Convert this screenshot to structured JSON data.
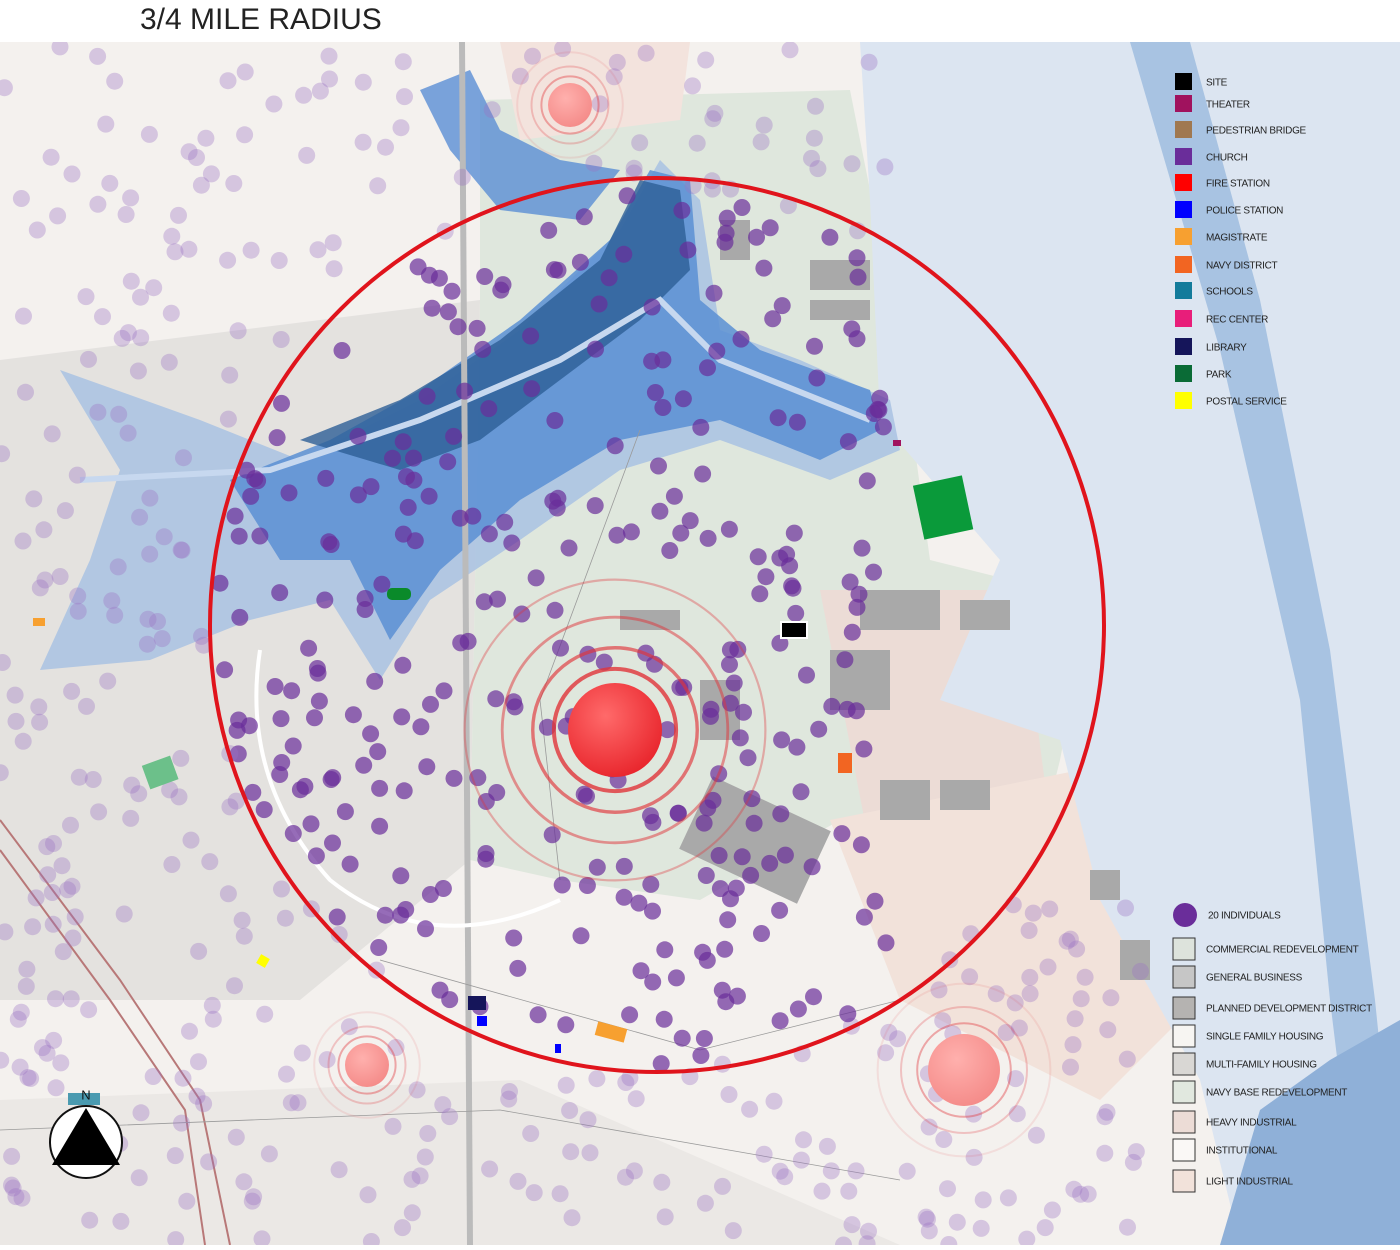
{
  "title": "3/4 MILE RADIUS",
  "legend": {
    "facilities": [
      {
        "label": "SITE",
        "color": "#000000"
      },
      {
        "label": "THEATER",
        "color": "#a0125e"
      },
      {
        "label": "PEDESTRIAN BRIDGE",
        "color": "#a07850"
      },
      {
        "label": "CHURCH",
        "color": "#6a2d9a"
      },
      {
        "label": "FIRE STATION",
        "color": "#ff0000"
      },
      {
        "label": "POLICE STATION",
        "color": "#0000ff"
      },
      {
        "label": "MAGISTRATE",
        "color": "#f7a030"
      },
      {
        "label": "NAVY DISTRICT",
        "color": "#f26522"
      },
      {
        "label": "SCHOOLS",
        "color": "#137b9b"
      },
      {
        "label": "REC CENTER",
        "color": "#e81e7a"
      },
      {
        "label": "LIBRARY",
        "color": "#15155a"
      },
      {
        "label": "PARK",
        "color": "#0a6b36"
      },
      {
        "label": "POSTAL SERVICE",
        "color": "#ffff00"
      }
    ],
    "individuals": {
      "label": "20 INDIVIDUALS",
      "color": "#6a2d9a"
    },
    "zones": [
      {
        "label": "COMMERCIAL REDEVELOPMENT",
        "color": "#dde3dc"
      },
      {
        "label": "GENERAL BUSINESS",
        "color": "#c6c6c6"
      },
      {
        "label": "PLANNED DEVELOPMENT DISTRICT",
        "color": "#b5b3b1"
      },
      {
        "label": "SINGLE FAMILY HOUSING",
        "color": "#f7f5f2"
      },
      {
        "label": "MULTI-FAMILY HOUSING",
        "color": "#d9d7d4"
      },
      {
        "label": "NAVY BASE REDEVELOPMENT",
        "color": "#e1e8df"
      },
      {
        "label": "HEAVY INDUSTRIAL",
        "color": "#ecdcd6"
      },
      {
        "label": "INSTITUTIONAL",
        "color": "#faf8f6"
      },
      {
        "label": "LIGHT INDUSTRIAL",
        "color": "#f2e2da"
      }
    ]
  },
  "compass": "N"
}
